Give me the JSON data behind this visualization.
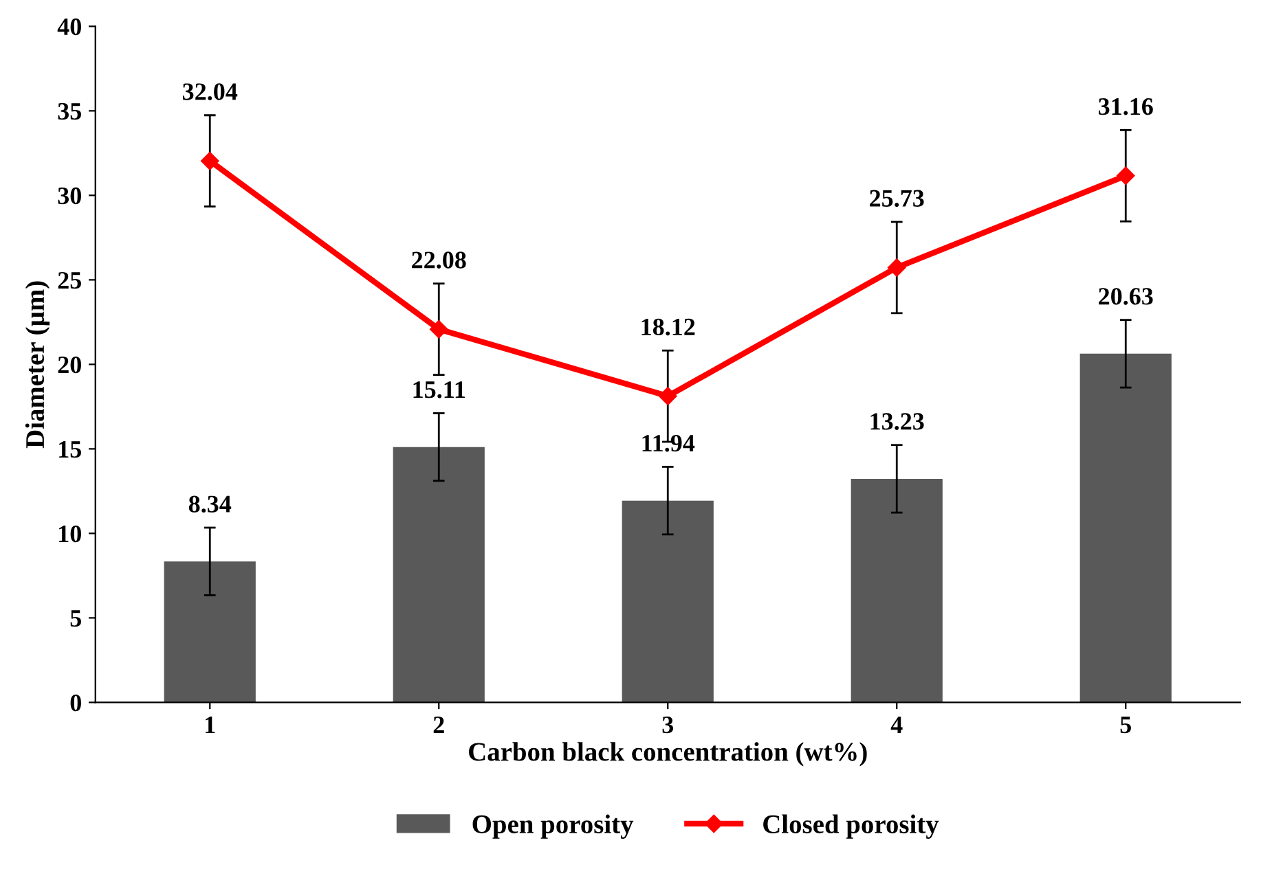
{
  "chart_data": {
    "type": "bar",
    "xlabel": "Carbon black concentration (wt%)",
    "ylabel": "Diameter (µm)",
    "categories": [
      "1",
      "2",
      "3",
      "4",
      "5"
    ],
    "series": [
      {
        "name": "Open porosity",
        "color": "#595959",
        "values": [
          8.34,
          15.11,
          11.94,
          13.23,
          20.63
        ],
        "errors": [
          2,
          2,
          2,
          2,
          2
        ]
      },
      {
        "name": "Closed porosity",
        "type": "line",
        "color": "#ff0000",
        "values": [
          32.04,
          22.08,
          18.12,
          25.73,
          31.16
        ],
        "errors": [
          2.7,
          2.7,
          2.7,
          2.7,
          2.7
        ],
        "marker": "diamond",
        "line_style": "solid"
      }
    ],
    "ylim": [
      0,
      40
    ],
    "yticks": [
      0,
      5,
      10,
      15,
      20,
      25,
      30,
      35,
      40
    ],
    "data_labels": true,
    "grid": false,
    "legend": "bottom"
  }
}
